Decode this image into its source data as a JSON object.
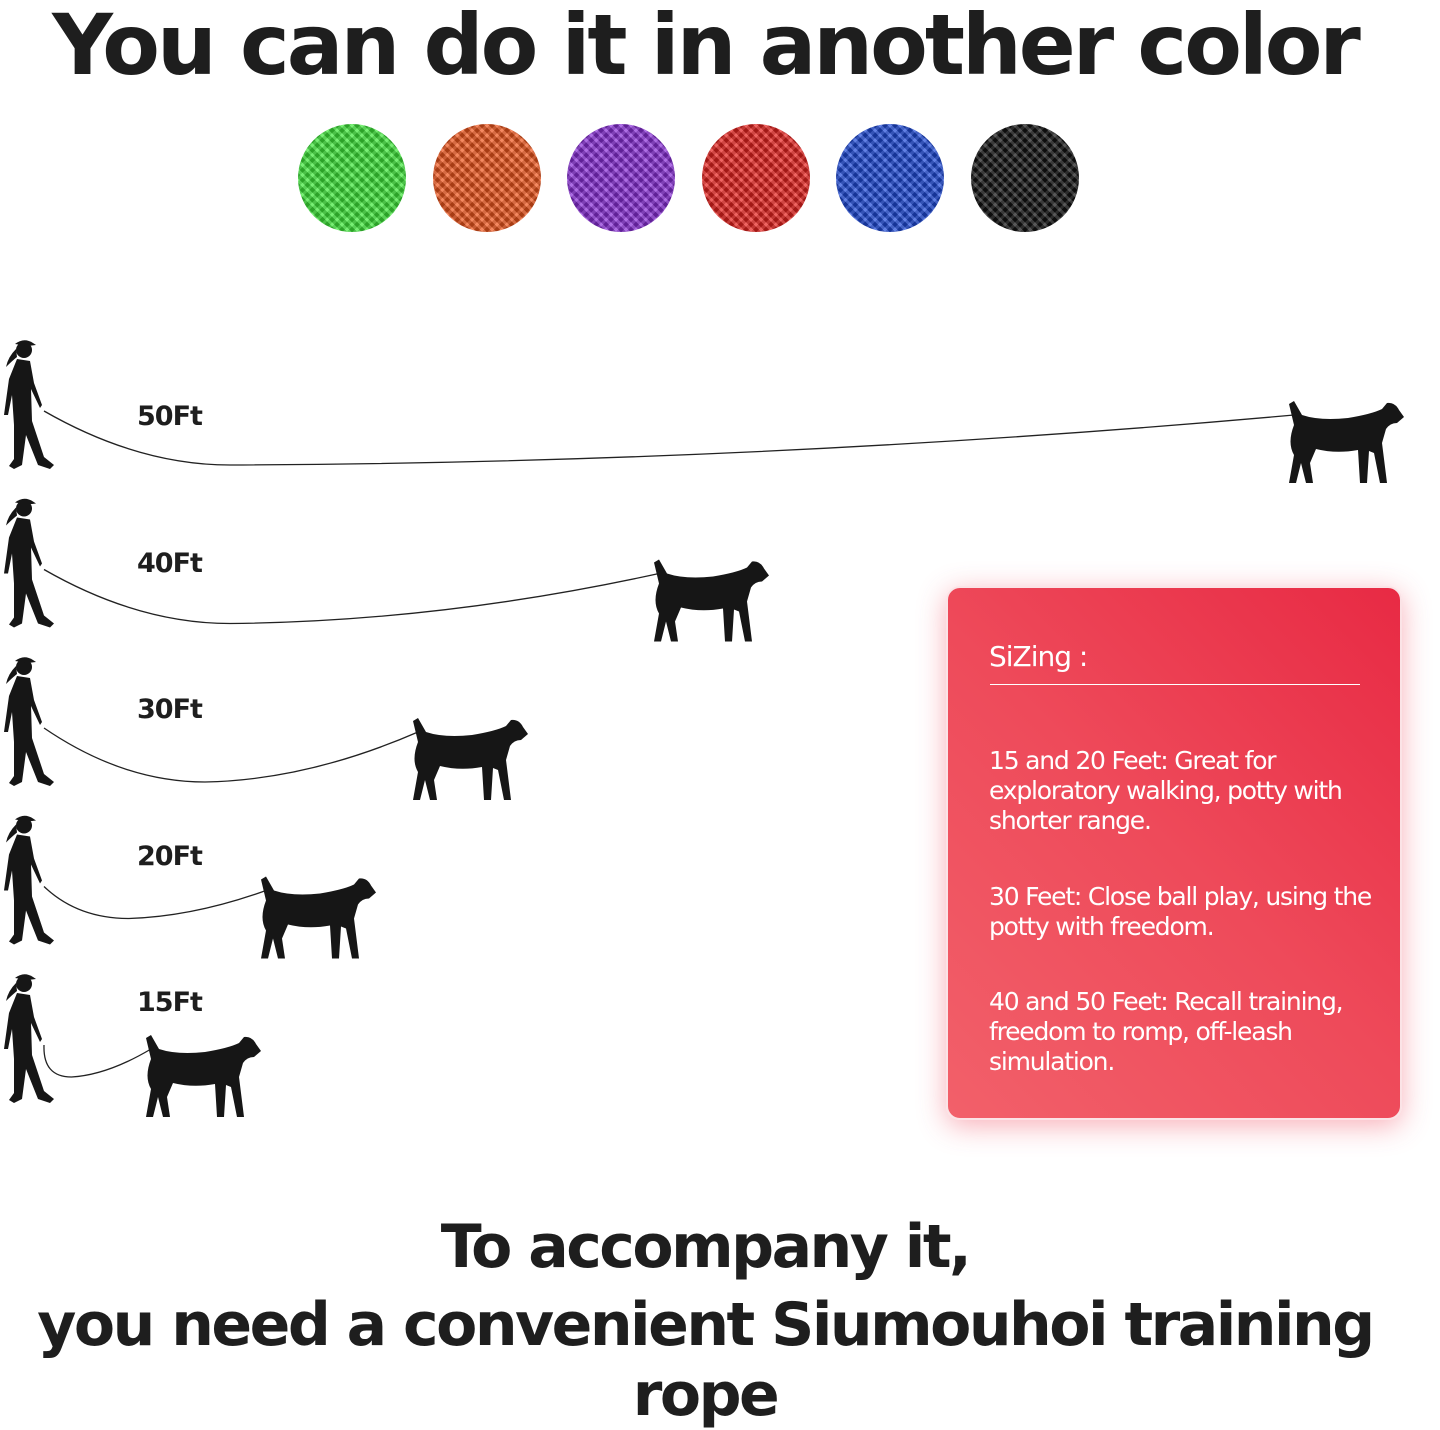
{
  "title": "You can do it in another color",
  "swatches": [
    {
      "name": "green",
      "color": "#3ee83a"
    },
    {
      "name": "orange",
      "color": "#f0561c"
    },
    {
      "name": "purple",
      "color": "#8a2fd8"
    },
    {
      "name": "red",
      "color": "#e8221e"
    },
    {
      "name": "blue",
      "color": "#1f4ad8"
    },
    {
      "name": "black",
      "color": "#111111"
    }
  ],
  "lengths": [
    {
      "label": "50Ft",
      "feet": 50
    },
    {
      "label": "40Ft",
      "feet": 40
    },
    {
      "label": "30Ft",
      "feet": 30
    },
    {
      "label": "20Ft",
      "feet": 20
    },
    {
      "label": "15Ft",
      "feet": 15
    }
  ],
  "sizing": {
    "heading": "SiZing :",
    "items": [
      "15 and 20 Feet: Great for exploratory walking, potty with shorter range.",
      "30 Feet: Close ball play, using the potty with freedom.",
      "40 and 50 Feet: Recall training, freedom to romp, off-leash simulation."
    ],
    "card_color": "#e8304a"
  },
  "bottom": {
    "line1": "To accompany it,",
    "line2": "you need a convenient Siumouhoi training rope"
  }
}
